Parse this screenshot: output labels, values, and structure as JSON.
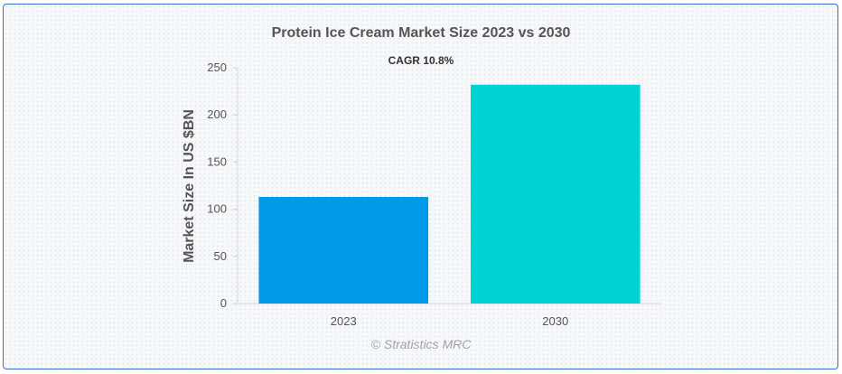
{
  "chart_data": {
    "type": "bar",
    "title": "Protein Ice Cream Market Size 2023 vs 2030",
    "subtitle": "CAGR 10.8%",
    "xlabel": "",
    "ylabel": "Market Size In US $BN",
    "categories": [
      "2023",
      "2030"
    ],
    "values": [
      113,
      232
    ],
    "colors": [
      "#009be8",
      "#00d3d3"
    ],
    "ylim": [
      0,
      250
    ],
    "yticks": [
      0,
      50,
      100,
      150,
      200,
      250
    ],
    "grid": false,
    "legend": "none"
  },
  "watermark": "© Stratistics MRC"
}
